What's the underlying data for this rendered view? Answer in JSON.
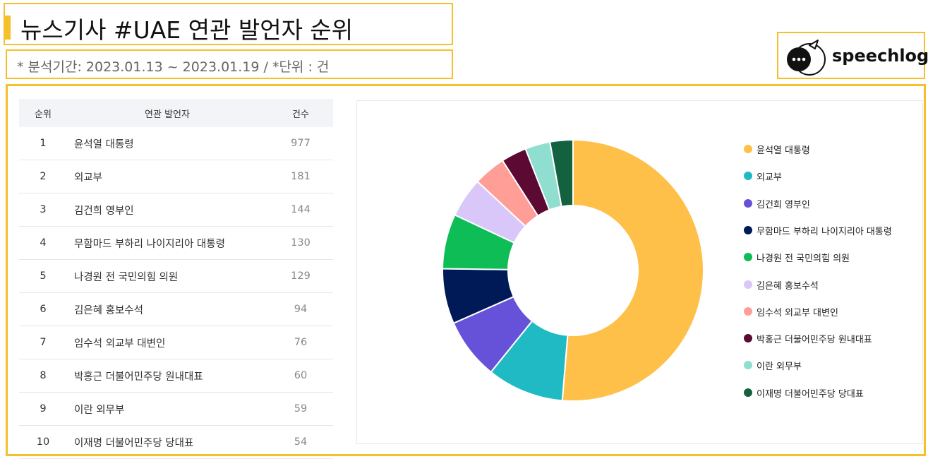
{
  "header": {
    "title": "뉴스기사 #UAE 연관 발언자 순위",
    "subtitle": "* 분석기간: 2023.01.13 ~ 2023.01.19 / *단위 : 건"
  },
  "logo": {
    "text": "speechlog"
  },
  "table": {
    "headers": {
      "rank": "순위",
      "name": "연관 발언자",
      "count": "건수"
    },
    "rows": [
      {
        "rank": "1",
        "name": "윤석열 대통령",
        "count": "977"
      },
      {
        "rank": "2",
        "name": "외교부",
        "count": "181"
      },
      {
        "rank": "3",
        "name": "김건희 영부인",
        "count": "144"
      },
      {
        "rank": "4",
        "name": "무함마드 부하리 나이지리아 대통령",
        "count": "130"
      },
      {
        "rank": "5",
        "name": "나경원 전 국민의힘 의원",
        "count": "129"
      },
      {
        "rank": "6",
        "name": "김은혜 홍보수석",
        "count": "94"
      },
      {
        "rank": "7",
        "name": "임수석 외교부 대변인",
        "count": "76"
      },
      {
        "rank": "8",
        "name": "박홍근 더불어민주당 원내대표",
        "count": "60"
      },
      {
        "rank": "9",
        "name": "이란 외무부",
        "count": "59"
      },
      {
        "rank": "10",
        "name": "이재명 더불어민주당 당대표",
        "count": "54"
      }
    ]
  },
  "chart_data": {
    "type": "pie",
    "donut": true,
    "legend_position": "right",
    "categories": [
      "윤석열 대통령",
      "외교부",
      "김건희 영부인",
      "무함마드 부하리 나이지리아 대통령",
      "나경원 전 국민의힘 의원",
      "김은혜 홍보수석",
      "임수석 외교부 대변인",
      "박홍근 더불어민주당 원내대표",
      "이란 외무부",
      "이재명 더불어민주당 당대표"
    ],
    "values": [
      977,
      181,
      144,
      130,
      129,
      94,
      76,
      60,
      59,
      54
    ],
    "colors": [
      "#ffc04a",
      "#20bac5",
      "#6652d9",
      "#001a57",
      "#0fbd57",
      "#d9c7fa",
      "#ff9e96",
      "#5c0a33",
      "#8fdecf",
      "#14613f"
    ]
  }
}
